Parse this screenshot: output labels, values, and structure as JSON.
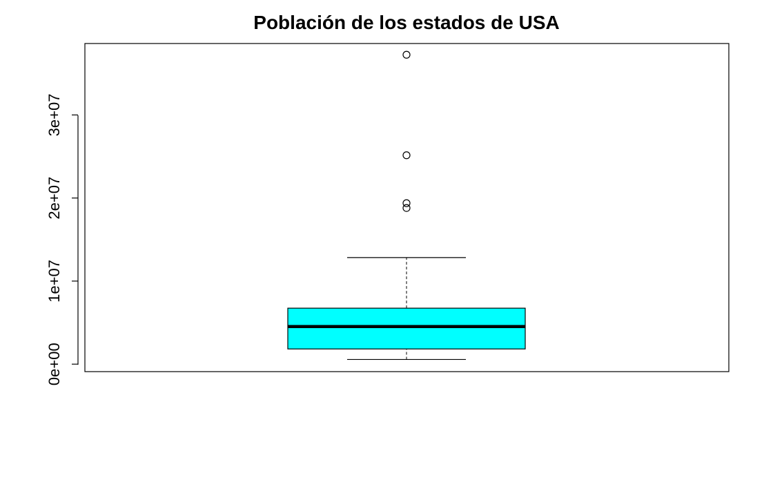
{
  "chart_data": {
    "type": "boxplot",
    "title": "Población de los estados de USA",
    "xlabel": "",
    "ylabel": "",
    "ylim": [
      -900000,
      38600000
    ],
    "yticks": [
      0,
      10000000,
      20000000,
      30000000
    ],
    "ytick_labels": [
      "0e+00",
      "1e+07",
      "2e+07",
      "3e+07"
    ],
    "box": {
      "whisker_low": 560000,
      "q1": 1830000,
      "median": 4530000,
      "q3": 6740000,
      "whisker_high": 12830000
    },
    "outliers": [
      37250000,
      25150000,
      19380000,
      18800000
    ],
    "fill_color": "#00ffff",
    "grid": false
  }
}
